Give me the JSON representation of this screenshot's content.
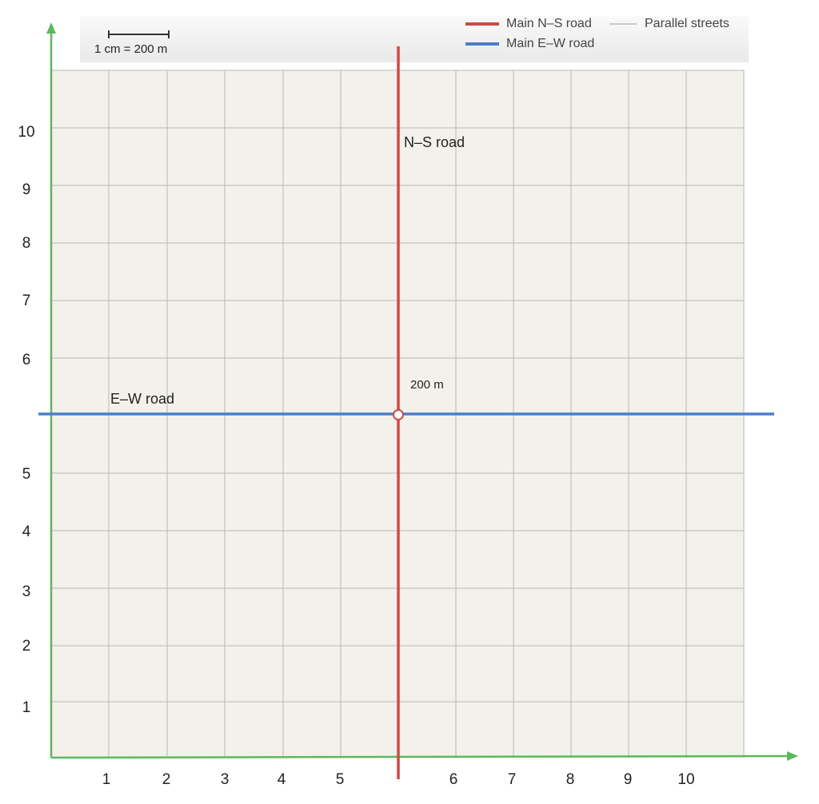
{
  "legend": {
    "items": [
      "Main N–S road",
      "Parallel streets",
      "Main E–W road"
    ]
  },
  "scale": "1 cm = 200 m",
  "x_axis": {
    "labels": [
      1,
      2,
      3,
      4,
      5,
      6,
      7,
      8,
      9,
      10
    ]
  },
  "y_axis": {
    "labels": [
      1,
      2,
      3,
      4,
      5,
      6,
      7,
      8,
      9,
      10
    ]
  },
  "roads": {
    "ns_label": "N–S road",
    "ew_label": "E–W road",
    "distance": "200 m"
  }
}
